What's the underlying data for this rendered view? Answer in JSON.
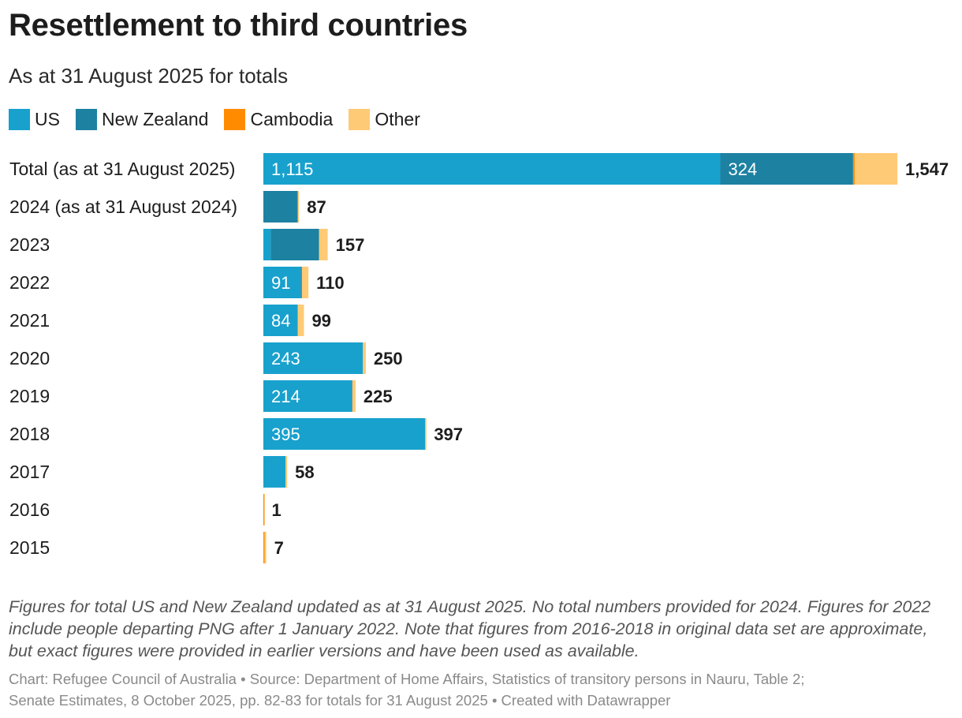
{
  "title": "Resettlement to third countries",
  "subtitle": "As at 31 August 2025 for totals",
  "legend": [
    {
      "label": "US",
      "color": "#18a1cd"
    },
    {
      "label": "New Zealand",
      "color": "#1d81a2"
    },
    {
      "label": "Cambodia",
      "color": "#ff8c00"
    },
    {
      "label": "Other",
      "color": "#ffca76"
    }
  ],
  "chart_data": {
    "type": "stacked-bar-horizontal",
    "series_names": [
      "US",
      "New Zealand",
      "Cambodia",
      "Other"
    ],
    "rows": [
      {
        "label": "Total (as at 31 August 2025)",
        "values": [
          1115,
          324,
          4,
          104
        ],
        "total": "1,547",
        "inner_labels": [
          "1,115",
          "324",
          "",
          ""
        ]
      },
      {
        "label": "2024 (as at 31 August 2024)",
        "values": [
          0,
          84,
          0,
          3
        ],
        "total": "87",
        "inner_labels": [
          "",
          "",
          "",
          ""
        ]
      },
      {
        "label": "2023",
        "values": [
          18,
          118,
          0,
          21
        ],
        "total": "157",
        "inner_labels": [
          "",
          "",
          "",
          ""
        ]
      },
      {
        "label": "2022",
        "values": [
          91,
          3,
          0,
          16
        ],
        "total": "110",
        "inner_labels": [
          "91",
          "",
          "",
          ""
        ]
      },
      {
        "label": "2021",
        "values": [
          84,
          0,
          0,
          15
        ],
        "total": "99",
        "inner_labels": [
          "84",
          "",
          "",
          ""
        ]
      },
      {
        "label": "2020",
        "values": [
          243,
          0,
          0,
          7
        ],
        "total": "250",
        "inner_labels": [
          "243",
          "",
          "",
          ""
        ]
      },
      {
        "label": "2019",
        "values": [
          214,
          3,
          0,
          8
        ],
        "total": "225",
        "inner_labels": [
          "214",
          "",
          "",
          ""
        ]
      },
      {
        "label": "2018",
        "values": [
          395,
          0,
          0,
          2
        ],
        "total": "397",
        "inner_labels": [
          "395",
          "",
          "",
          ""
        ]
      },
      {
        "label": "2017",
        "values": [
          54,
          0,
          0,
          4
        ],
        "total": "58",
        "inner_labels": [
          "",
          "",
          "",
          ""
        ]
      },
      {
        "label": "2016",
        "values": [
          0,
          0,
          1,
          0
        ],
        "total": "1",
        "inner_labels": [
          "",
          "",
          "",
          ""
        ]
      },
      {
        "label": "2015",
        "values": [
          0,
          0,
          3,
          4
        ],
        "total": "7",
        "inner_labels": [
          "",
          "",
          "",
          ""
        ]
      }
    ],
    "x_max": 1547
  },
  "note": "Figures for total US and New Zealand updated as at 31 August 2025. No total numbers provided for 2024. Figures for 2022 include people departing PNG after 1 January 2022. Note that figures from 2016-2018 in original data set are approximate, but exact figures were provided in earlier versions and have been used as available.",
  "footer": {
    "line1": "Chart: Refugee Council of Australia • Source: Department of Home Affairs, Statistics of transitory persons in Nauru, Table 2;",
    "line2": "Senate Estimates, 8 October 2025, pp. 82-83 for totals for 31 August 2025  • Created with Datawrapper"
  }
}
